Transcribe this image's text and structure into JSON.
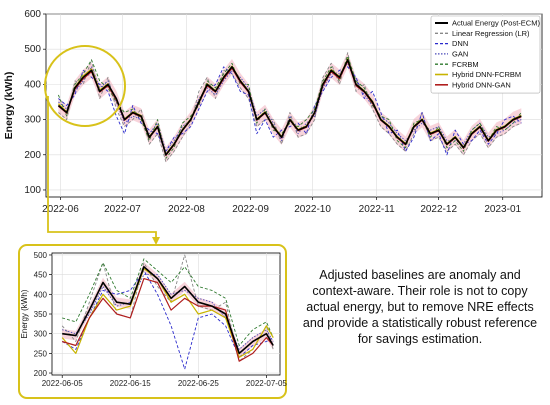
{
  "colors": {
    "actual": "#000000",
    "lr": "#888888",
    "dnn": "#2a2acc",
    "gan": "#4a4ab8",
    "fcrbm": "#2f7a2f",
    "hybrid_fcrbm": "#c8b400",
    "hybrid_gan": "#b01e1e",
    "band": "#f0a0b0",
    "highlight": "#d8c21a"
  },
  "annotation_text": "Adjusted baselines are anomaly and context-aware. Their role is not to copy actual energy, but to remove NRE effects and provide a statistically robust reference for savings estimation.",
  "chart_data": [
    {
      "type": "line",
      "ylabel": "Energy (kWh)",
      "ylim": [
        80,
        600
      ],
      "yticks": [
        "100",
        "200",
        "300",
        "400",
        "500",
        "600"
      ],
      "xticks": [
        {
          "label": "2022-06",
          "day": 1
        },
        {
          "label": "2022-07",
          "day": 31
        },
        {
          "label": "2022-08",
          "day": 62
        },
        {
          "label": "2022-09",
          "day": 93
        },
        {
          "label": "2022-10",
          "day": 123
        },
        {
          "label": "2022-11",
          "day": 154
        },
        {
          "label": "2022-12",
          "day": 184
        },
        {
          "label": "2023-01",
          "day": 215
        }
      ],
      "xlim": [
        -6,
        234
      ],
      "legend": {
        "placement": "top-right",
        "entries": [
          "Actual Energy (Post-ECM)",
          "Linear Regression (LR)",
          "DNN",
          "GAN",
          "FCRBM",
          "Hybrid DNN-FCRBM",
          "Hybrid DNN-GAN"
        ]
      },
      "x": [
        0,
        4,
        8,
        12,
        16,
        20,
        24,
        28,
        32,
        36,
        40,
        44,
        48,
        52,
        56,
        60,
        64,
        68,
        72,
        76,
        80,
        84,
        88,
        92,
        96,
        100,
        104,
        108,
        112,
        116,
        120,
        124,
        128,
        132,
        136,
        140,
        144,
        148,
        152,
        156,
        160,
        164,
        168,
        172,
        176,
        180,
        184,
        188,
        192,
        196,
        200,
        204,
        208,
        212,
        216,
        220,
        224
      ],
      "series": [
        {
          "name": "Actual Energy (Post-ECM)",
          "values": [
            340,
            320,
            390,
            420,
            440,
            380,
            400,
            360,
            300,
            320,
            310,
            250,
            280,
            200,
            230,
            270,
            300,
            350,
            400,
            380,
            420,
            450,
            410,
            380,
            300,
            320,
            280,
            250,
            300,
            270,
            280,
            320,
            400,
            440,
            420,
            470,
            400,
            380,
            350,
            300,
            280,
            250,
            230,
            280,
            300,
            260,
            270,
            230,
            250,
            220,
            260,
            280,
            240,
            270,
            280,
            300,
            310
          ]
        },
        {
          "name": "Linear Regression (LR)",
          "values": [
            320,
            300,
            410,
            400,
            470,
            360,
            420,
            330,
            280,
            300,
            330,
            230,
            260,
            180,
            210,
            250,
            290,
            380,
            420,
            360,
            440,
            430,
            390,
            360,
            280,
            300,
            300,
            230,
            320,
            250,
            260,
            300,
            420,
            460,
            400,
            490,
            380,
            400,
            330,
            280,
            260,
            230,
            210,
            260,
            320,
            240,
            250,
            210,
            230,
            200,
            240,
            260,
            220,
            250,
            260,
            280,
            290
          ]
        },
        {
          "name": "DNN",
          "values": [
            360,
            340,
            370,
            440,
            420,
            400,
            380,
            310,
            260,
            340,
            290,
            270,
            260,
            210,
            250,
            260,
            280,
            330,
            380,
            400,
            450,
            430,
            380,
            370,
            260,
            300,
            250,
            270,
            280,
            290,
            260,
            340,
            380,
            420,
            440,
            450,
            420,
            360,
            380,
            320,
            260,
            270,
            210,
            250,
            320,
            240,
            260,
            200,
            270,
            230,
            240,
            270,
            230,
            260,
            300,
            310,
            290
          ]
        },
        {
          "name": "GAN",
          "values": [
            350,
            330,
            380,
            410,
            450,
            390,
            410,
            350,
            290,
            310,
            300,
            260,
            290,
            210,
            240,
            280,
            300,
            360,
            390,
            370,
            410,
            440,
            420,
            390,
            310,
            330,
            290,
            240,
            310,
            260,
            290,
            310,
            390,
            430,
            430,
            460,
            410,
            370,
            340,
            310,
            290,
            260,
            240,
            270,
            290,
            270,
            280,
            240,
            240,
            230,
            270,
            290,
            250,
            260,
            270,
            290,
            300
          ]
        },
        {
          "name": "FCRBM",
          "values": [
            370,
            310,
            400,
            430,
            470,
            410,
            390,
            350,
            320,
            330,
            300,
            240,
            300,
            190,
            220,
            290,
            310,
            340,
            410,
            390,
            430,
            460,
            400,
            400,
            290,
            330,
            270,
            260,
            290,
            280,
            300,
            330,
            410,
            450,
            410,
            480,
            410,
            390,
            340,
            310,
            300,
            240,
            220,
            290,
            300,
            250,
            280,
            220,
            240,
            210,
            270,
            290,
            240,
            280,
            270,
            290,
            320
          ]
        },
        {
          "name": "Hybrid DNN-FCRBM",
          "values": [
            345,
            322,
            392,
            424,
            444,
            384,
            402,
            358,
            302,
            322,
            312,
            252,
            282,
            202,
            232,
            272,
            302,
            352,
            402,
            382,
            422,
            452,
            412,
            382,
            302,
            322,
            282,
            252,
            302,
            272,
            282,
            322,
            402,
            442,
            422,
            472,
            402,
            382,
            352,
            302,
            282,
            252,
            232,
            282,
            302,
            262,
            272,
            232,
            252,
            222,
            262,
            282,
            242,
            272,
            282,
            302,
            312
          ]
        },
        {
          "name": "Hybrid DNN-GAN",
          "values": [
            338,
            318,
            386,
            416,
            436,
            378,
            396,
            356,
            298,
            318,
            308,
            248,
            278,
            198,
            228,
            268,
            298,
            348,
            396,
            378,
            416,
            446,
            406,
            378,
            298,
            318,
            278,
            248,
            298,
            268,
            278,
            318,
            396,
            436,
            416,
            466,
            396,
            378,
            346,
            298,
            278,
            248,
            228,
            278,
            298,
            258,
            268,
            228,
            248,
            218,
            258,
            278,
            238,
            268,
            278,
            298,
            308
          ]
        }
      ]
    },
    {
      "type": "line",
      "ylabel": "Energy (kWh)",
      "ylim": [
        195,
        505
      ],
      "yticks": [
        "200",
        "250",
        "300",
        "350",
        "400",
        "450",
        "500"
      ],
      "xticks": [
        {
          "label": "2022-06-05",
          "day": 5
        },
        {
          "label": "2022-06-15",
          "day": 15
        },
        {
          "label": "2022-06-25",
          "day": 25
        },
        {
          "label": "2022-07-05",
          "day": 35
        }
      ],
      "xlim": [
        3.5,
        37
      ],
      "x": [
        5,
        7,
        9,
        11,
        13,
        15,
        17,
        19,
        21,
        23,
        25,
        27,
        29,
        31,
        33,
        35,
        36
      ],
      "series": [
        {
          "name": "Actual Energy (Post-ECM)",
          "values": [
            300,
            295,
            360,
            430,
            380,
            375,
            470,
            440,
            390,
            420,
            380,
            370,
            350,
            250,
            280,
            300,
            270
          ]
        },
        {
          "name": "Linear Regression (LR)",
          "values": [
            320,
            280,
            380,
            480,
            350,
            340,
            480,
            420,
            380,
            500,
            370,
            360,
            380,
            230,
            260,
            320,
            260
          ]
        },
        {
          "name": "DNN",
          "values": [
            280,
            260,
            340,
            410,
            400,
            410,
            460,
            400,
            320,
            210,
            340,
            350,
            320,
            240,
            270,
            280,
            290
          ]
        },
        {
          "name": "GAN",
          "values": [
            310,
            300,
            350,
            420,
            370,
            380,
            450,
            450,
            400,
            410,
            390,
            380,
            340,
            260,
            290,
            310,
            280
          ]
        },
        {
          "name": "FCRBM",
          "values": [
            340,
            330,
            400,
            480,
            410,
            390,
            490,
            460,
            430,
            470,
            420,
            410,
            390,
            270,
            310,
            330,
            290
          ]
        },
        {
          "name": "Hybrid DNN-FCRBM",
          "values": [
            290,
            250,
            340,
            400,
            360,
            370,
            465,
            440,
            380,
            400,
            350,
            360,
            340,
            240,
            260,
            320,
            290
          ]
        },
        {
          "name": "Hybrid DNN-GAN",
          "values": [
            280,
            270,
            340,
            390,
            350,
            340,
            440,
            430,
            360,
            390,
            370,
            370,
            360,
            230,
            250,
            290,
            270
          ]
        }
      ]
    }
  ]
}
